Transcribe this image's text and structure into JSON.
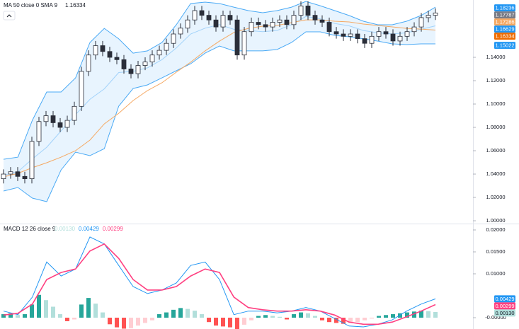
{
  "chart_data": [
    {
      "type": "candlestick",
      "legend_label": "MA 50 close 0 SMA 9",
      "legend_value": 1.16334,
      "legend_value_color": "#f08c28",
      "opens": [
        1.036,
        1.04,
        1.042,
        1.038,
        1.036,
        1.068,
        1.085,
        1.09,
        1.084,
        1.08,
        1.086,
        1.098,
        1.128,
        1.142,
        1.15,
        1.145,
        1.14,
        1.138,
        1.13,
        1.126,
        1.133,
        1.136,
        1.142,
        1.146,
        1.152,
        1.16,
        1.165,
        1.172,
        1.18,
        1.176,
        1.172,
        1.166,
        1.176,
        1.172,
        1.142,
        1.162,
        1.17,
        1.168,
        1.166,
        1.17,
        1.172,
        1.168,
        1.176,
        1.184,
        1.176,
        1.172,
        1.17,
        1.162,
        1.16,
        1.158,
        1.16,
        1.156,
        1.152,
        1.158,
        1.162,
        1.16,
        1.154,
        1.158,
        1.162,
        1.166,
        1.174,
        1.176
      ],
      "highs": [
        1.044,
        1.046,
        1.046,
        1.042,
        1.072,
        1.089,
        1.094,
        1.094,
        1.088,
        1.09,
        1.102,
        1.132,
        1.146,
        1.154,
        1.154,
        1.149,
        1.144,
        1.142,
        1.134,
        1.137,
        1.14,
        1.146,
        1.15,
        1.156,
        1.164,
        1.169,
        1.176,
        1.184,
        1.184,
        1.18,
        1.176,
        1.18,
        1.18,
        1.176,
        1.166,
        1.174,
        1.174,
        1.172,
        1.174,
        1.176,
        1.176,
        1.18,
        1.188,
        1.188,
        1.18,
        1.176,
        1.174,
        1.166,
        1.164,
        1.164,
        1.164,
        1.16,
        1.162,
        1.166,
        1.166,
        1.164,
        1.162,
        1.166,
        1.17,
        1.178,
        1.18,
        1.182
      ],
      "lows": [
        1.032,
        1.036,
        1.034,
        1.032,
        1.032,
        1.064,
        1.081,
        1.08,
        1.076,
        1.076,
        1.082,
        1.094,
        1.124,
        1.138,
        1.141,
        1.136,
        1.134,
        1.126,
        1.122,
        1.122,
        1.129,
        1.132,
        1.138,
        1.142,
        1.148,
        1.156,
        1.161,
        1.168,
        1.172,
        1.168,
        1.162,
        1.162,
        1.168,
        1.138,
        1.138,
        1.158,
        1.164,
        1.162,
        1.162,
        1.166,
        1.164,
        1.164,
        1.172,
        1.172,
        1.168,
        1.166,
        1.158,
        1.156,
        1.154,
        1.154,
        1.152,
        1.148,
        1.148,
        1.154,
        1.156,
        1.15,
        1.15,
        1.154,
        1.158,
        1.162,
        1.17,
        1.172
      ],
      "closes": [
        1.04,
        1.042,
        1.038,
        1.036,
        1.068,
        1.085,
        1.09,
        1.084,
        1.08,
        1.086,
        1.098,
        1.128,
        1.142,
        1.15,
        1.145,
        1.14,
        1.138,
        1.13,
        1.126,
        1.133,
        1.136,
        1.142,
        1.146,
        1.152,
        1.16,
        1.165,
        1.172,
        1.18,
        1.176,
        1.172,
        1.166,
        1.176,
        1.172,
        1.142,
        1.162,
        1.17,
        1.168,
        1.166,
        1.17,
        1.172,
        1.168,
        1.176,
        1.184,
        1.176,
        1.172,
        1.17,
        1.162,
        1.16,
        1.158,
        1.16,
        1.156,
        1.152,
        1.158,
        1.162,
        1.16,
        1.154,
        1.158,
        1.162,
        1.166,
        1.174,
        1.176,
        1.178
      ],
      "bands": {
        "color": "#2196f3",
        "upper": [
          1.0527,
          1.0545,
          1.0861,
          1.1103,
          1.1103,
          1.1224,
          1.1527,
          1.1648,
          1.1558,
          1.1436,
          1.1455,
          1.1527,
          1.1679,
          1.1861,
          1.1873,
          1.1861,
          1.183,
          1.18,
          1.1782,
          1.18,
          1.183,
          1.1879,
          1.1842,
          1.18,
          1.1758,
          1.1709,
          1.1679,
          1.1679,
          1.1709,
          1.1758,
          1.183
        ],
        "basis": [
          1.039,
          1.042,
          1.053,
          1.063,
          1.077,
          1.091,
          1.104,
          1.113,
          1.127,
          1.128,
          1.131,
          1.138,
          1.148,
          1.16,
          1.165,
          1.168,
          1.164,
          1.163,
          1.162,
          1.163,
          1.168,
          1.175,
          1.173,
          1.169,
          1.167,
          1.163,
          1.161,
          1.16,
          1.161,
          1.164,
          1.167
        ],
        "lower": [
          1.0255,
          1.0285,
          1.0194,
          1.0164,
          1.0436,
          1.0588,
          1.0558,
          1.0618,
          1.0982,
          1.1133,
          1.1164,
          1.1224,
          1.1285,
          1.1345,
          1.1436,
          1.1497,
          1.1455,
          1.1455,
          1.1455,
          1.1467,
          1.1527,
          1.1618,
          1.1618,
          1.1588,
          1.1576,
          1.1558,
          1.1539,
          1.1515,
          1.1509,
          1.1515,
          1.1515
        ]
      },
      "ma": {
        "color": "#f5a862",
        "values": [
          1.0376,
          1.0406,
          1.0455,
          1.0497,
          1.0545,
          1.06,
          1.0691,
          1.083,
          1.0921,
          1.103,
          1.1115,
          1.1182,
          1.1273,
          1.1358,
          1.1455,
          1.1539,
          1.1612,
          1.1648,
          1.1667,
          1.1673,
          1.1697,
          1.1721,
          1.1721,
          1.1709,
          1.1703,
          1.1685,
          1.1673,
          1.1661,
          1.1648,
          1.1642,
          1.16334
        ]
      },
      "ylim": [
        0.9982,
        1.1891
      ],
      "yticks": [
        {
          "value": 1.14,
          "label": "1.14000"
        },
        {
          "value": 1.12,
          "label": "1.12000"
        },
        {
          "value": 1.1,
          "label": "1.10000"
        },
        {
          "value": 1.08,
          "label": "1.08000"
        },
        {
          "value": 1.06,
          "label": "1.06000"
        },
        {
          "value": 1.04,
          "label": "1.04000"
        },
        {
          "value": 1.02,
          "label": "1.02000"
        },
        {
          "value": 1.0,
          "label": "1.00000"
        }
      ],
      "badges": [
        {
          "value": 1.18236,
          "color": "#2196f3"
        },
        {
          "value": 1.17787,
          "color": "#787b86"
        },
        {
          "value": 1.17286,
          "color": "#f5a862"
        },
        {
          "value": 1.16629,
          "color": "#2196f3"
        },
        {
          "value": 1.16334,
          "color": "#ef6c00"
        },
        {
          "value": 1.15022,
          "color": "#2196f3"
        }
      ]
    },
    {
      "type": "macd",
      "legend_label": "MACD 12 26 close 9",
      "legend_values": [
        {
          "value": 0.0013,
          "label": "0.00130",
          "color": "#b2dfdb"
        },
        {
          "value": 0.00429,
          "color": "#2196f3"
        },
        {
          "value": 0.00299,
          "color": "#ff4081"
        }
      ],
      "histogram": [
        0.0008,
        0.001,
        0.0006,
        0.0008,
        0.003,
        0.0052,
        0.004,
        0.0025,
        0.0008,
        -0.0008,
        -0.0004,
        0.003,
        0.0045,
        0.0032,
        0.0012,
        -0.0015,
        -0.0022,
        -0.0025,
        -0.0024,
        -0.0018,
        -0.0012,
        -0.0006,
        0.0008,
        0.0012,
        0.0018,
        0.0022,
        0.002,
        0.0016,
        0.0008,
        -0.001,
        -0.0018,
        -0.002,
        -0.0022,
        -0.0026,
        -0.0016,
        -0.0006,
        0.0004,
        0.0006,
        0.0004,
        0.0002,
        -0.0004,
        0.0008,
        0.0012,
        0.001,
        0.0004,
        -0.0006,
        -0.001,
        -0.0012,
        -0.0014,
        -0.0012,
        -0.001,
        -0.0006,
        -0.0002,
        0.0004,
        0.0006,
        0.0008,
        0.001,
        0.0012,
        0.0014,
        0.0016,
        0.0015,
        0.0013
      ],
      "histogram_colors": [
        "#26a69a",
        "#b2dfdb",
        "#ff5252",
        "#ffcdd2"
      ],
      "macd": {
        "color": "#2196f3",
        "values": [
          0.0015,
          0.0007,
          0.0047,
          0.0127,
          0.0095,
          0.0111,
          0.0184,
          0.0168,
          0.0119,
          0.0071,
          0.0055,
          0.0063,
          0.0079,
          0.0119,
          0.0127,
          0.0087,
          0.0007,
          0.0015,
          0.0015,
          0.0011,
          0.0015,
          0.0023,
          0.0015,
          -0.0002,
          -0.0019,
          -0.0021,
          -0.0015,
          -0.0005,
          0.0015,
          0.0031,
          0.00429
        ]
      },
      "signal": {
        "color": "#ff4081",
        "values": [
          0.0006,
          0.001,
          0.0031,
          0.0087,
          0.0103,
          0.0111,
          0.0152,
          0.0168,
          0.0135,
          0.0087,
          0.0063,
          0.0063,
          0.0071,
          0.0095,
          0.0111,
          0.0103,
          0.0047,
          0.0023,
          0.0018,
          0.0015,
          0.0015,
          0.0018,
          0.0015,
          0.0006,
          -0.001,
          -0.0015,
          -0.0015,
          -0.001,
          0.0002,
          0.0015,
          0.00299
        ]
      },
      "ylim": [
        -0.00258,
        0.02113
      ],
      "yticks": [
        {
          "value": 0.02,
          "label": "0.02000"
        },
        {
          "value": 0.015,
          "label": "0.01500"
        },
        {
          "value": 0.01,
          "label": "0.01000"
        },
        {
          "value": 0,
          "label": "-0.00000"
        }
      ],
      "badges": [
        {
          "value": 0.00429,
          "color": "#2196f3"
        },
        {
          "value": 0.00299,
          "color": "#ff4081"
        },
        {
          "value": 0.0013,
          "label": "0.00130",
          "color": "#b2dfdb"
        }
      ]
    }
  ]
}
